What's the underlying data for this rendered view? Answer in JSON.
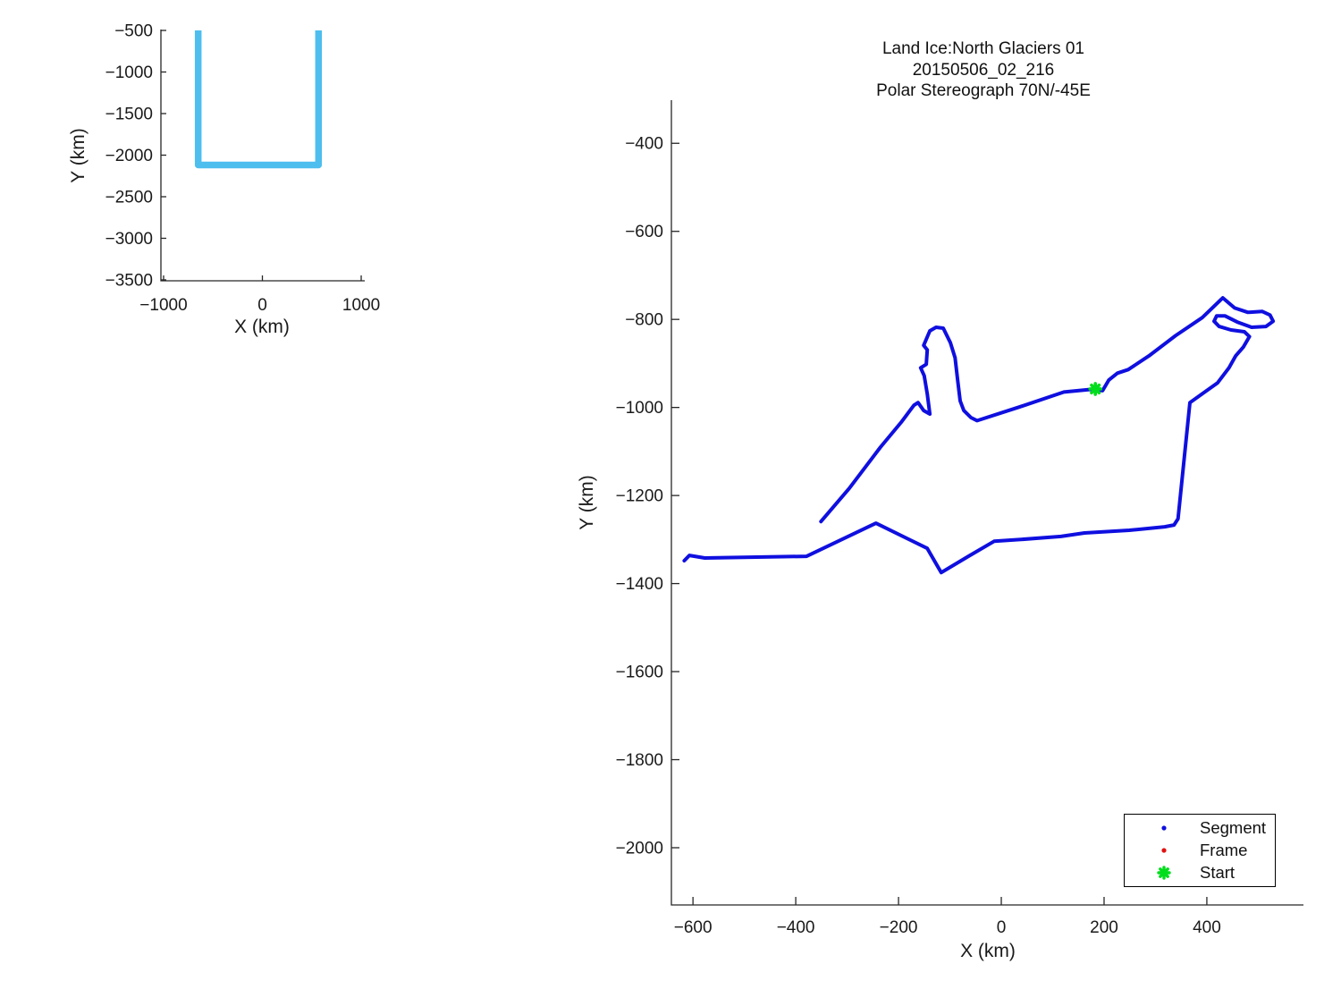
{
  "accent_colors": {
    "segment_blue": "#0f0fe0",
    "frame_red": "#e01212",
    "start_green": "#00dd1c",
    "inset_cyan": "#4dbeee",
    "axis_color": "#262626"
  },
  "legend": {
    "items": [
      {
        "label": "Segment",
        "marker": "dot",
        "color": "#0f0fe0"
      },
      {
        "label": "Frame",
        "marker": "dot",
        "color": "#e01212"
      },
      {
        "label": "Start",
        "marker": "burst",
        "color": "#00dd1c"
      }
    ]
  },
  "chart_data": [
    {
      "type": "line",
      "name": "coverage-inset",
      "title": "",
      "xlabel": "X (km)",
      "ylabel": "Y (km)",
      "x_ticks": [
        -1000,
        0,
        1000
      ],
      "y_ticks": [
        -500,
        -1000,
        -1500,
        -2000,
        -2500,
        -3000,
        -3500
      ],
      "xlim": [
        -1027,
        1036
      ],
      "ylim": [
        -3511,
        -489
      ],
      "grid": false,
      "legend_position": "none",
      "series": [
        {
          "name": "region-outline",
          "color": "#4dbeee",
          "line_width": 7.5,
          "points": [
            [
              -650,
              -500
            ],
            [
              -650,
              -2118
            ],
            [
              568,
              -2118
            ],
            [
              568,
              -500
            ]
          ]
        }
      ]
    },
    {
      "type": "line",
      "name": "flight-track",
      "title_lines": [
        "Land Ice:North Glaciers 01",
        "20150506_02_216",
        "Polar Stereograph 70N/-45E"
      ],
      "xlabel": "X (km)",
      "ylabel": "Y (km)",
      "x_ticks": [
        -600,
        -400,
        -200,
        0,
        200,
        400
      ],
      "y_ticks": [
        -400,
        -600,
        -800,
        -1000,
        -1200,
        -1400,
        -1600,
        -1800,
        -2000
      ],
      "xlim": [
        -642,
        588
      ],
      "ylim": [
        -2130,
        -302
      ],
      "grid": false,
      "legend_position": "lower right",
      "series": [
        {
          "name": "Segment",
          "color": "#0f0fe0",
          "line_width": 4,
          "points": [
            [
              -617,
              -1348
            ],
            [
              -607,
              -1336
            ],
            [
              -577,
              -1342
            ],
            [
              -379,
              -1338
            ],
            [
              -244,
              -1263
            ],
            [
              -144,
              -1320
            ],
            [
              -117,
              -1375
            ],
            [
              -64,
              -1338
            ],
            [
              -14,
              -1304
            ],
            [
              35,
              -1300
            ],
            [
              116,
              -1293
            ],
            [
              162,
              -1285
            ],
            [
              249,
              -1279
            ],
            [
              318,
              -1271
            ],
            [
              336,
              -1267
            ],
            [
              344,
              -1253
            ],
            [
              367,
              -989
            ],
            [
              391,
              -969
            ],
            [
              421,
              -944
            ],
            [
              443,
              -910
            ],
            [
              456,
              -883
            ],
            [
              471,
              -863
            ],
            [
              483,
              -839
            ],
            [
              473,
              -828
            ],
            [
              447,
              -824
            ],
            [
              424,
              -816
            ],
            [
              414,
              -804
            ],
            [
              419,
              -792
            ],
            [
              435,
              -792
            ],
            [
              459,
              -806
            ],
            [
              487,
              -818
            ],
            [
              515,
              -816
            ],
            [
              529,
              -804
            ],
            [
              523,
              -790
            ],
            [
              508,
              -782
            ],
            [
              480,
              -784
            ],
            [
              454,
              -774
            ],
            [
              431,
              -751
            ],
            [
              391,
              -796
            ],
            [
              339,
              -837
            ],
            [
              287,
              -883
            ],
            [
              247,
              -914
            ],
            [
              226,
              -922
            ],
            [
              209,
              -938
            ],
            [
              197,
              -962
            ],
            [
              183,
              -958
            ],
            [
              122,
              -965
            ],
            [
              35,
              -999
            ],
            [
              -47,
              -1030
            ],
            [
              -59,
              -1023
            ],
            [
              -73,
              -1007
            ],
            [
              -80,
              -985
            ],
            [
              -85,
              -938
            ],
            [
              -90,
              -887
            ],
            [
              -99,
              -853
            ],
            [
              -113,
              -820
            ],
            [
              -127,
              -818
            ],
            [
              -139,
              -826
            ],
            [
              -151,
              -859
            ],
            [
              -144,
              -869
            ],
            [
              -146,
              -902
            ],
            [
              -157,
              -910
            ],
            [
              -150,
              -928
            ],
            [
              -144,
              -969
            ],
            [
              -139,
              -1015
            ],
            [
              -151,
              -1007
            ],
            [
              -162,
              -989
            ],
            [
              -170,
              -995
            ],
            [
              -195,
              -1034
            ],
            [
              -235,
              -1090
            ],
            [
              -296,
              -1184
            ],
            [
              -351,
              -1259
            ]
          ]
        },
        {
          "name": "Frame",
          "color": "#e01212",
          "line_width": 4,
          "points": []
        },
        {
          "name": "Start",
          "color": "#00dd1c",
          "marker": "burst",
          "points": [
            [
              183,
              -958
            ]
          ]
        }
      ]
    }
  ]
}
